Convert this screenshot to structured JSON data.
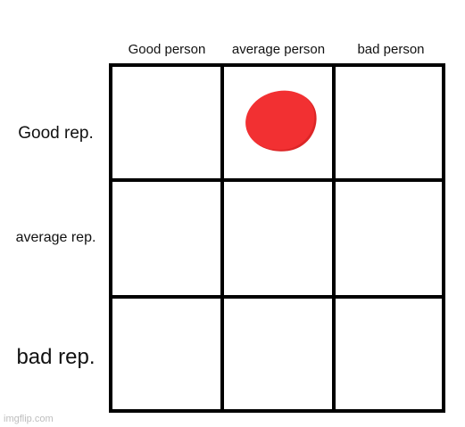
{
  "columns": [
    "Good person",
    "average person",
    "bad person"
  ],
  "rows": [
    "Good rep.",
    "average rep.",
    "bad rep."
  ],
  "marker": {
    "color": "#f23032",
    "column": "average person",
    "row": "Good rep."
  },
  "watermark": "imgflip.com"
}
